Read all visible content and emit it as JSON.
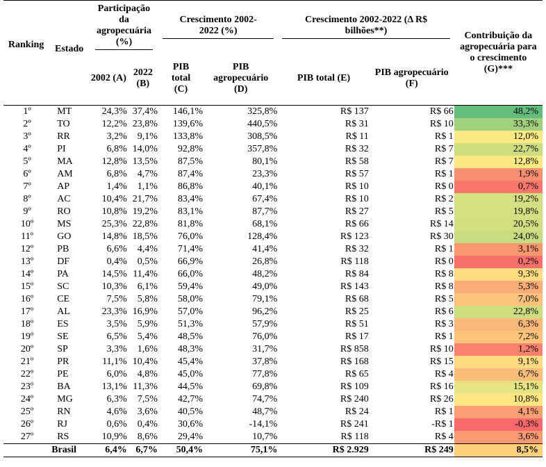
{
  "headers": {
    "ranking": "Ranking",
    "estado": "Estado",
    "participacao": "Participação da agropecuária (%)",
    "crescimento_pct": "Crescimento 2002-2022 (%)",
    "crescimento_abs": "Crescimento 2002-2022 (Δ R$ bilhões**)",
    "contribuicao": "Contribuição da agropecuária para o crescimento (G)***",
    "col_a": "2002 (A)",
    "col_b": "2022 (B)",
    "col_c": "PIB total (C)",
    "col_d": "PIB agropecuário (D)",
    "col_e": "PIB total (E)",
    "col_f": "PIB agropecuário (F)"
  },
  "rows": [
    {
      "rank": "1º",
      "estado": "MT",
      "a": "24,3%",
      "b": "37,4%",
      "c": "146,1%",
      "d": "325,8%",
      "e": "R$ 137",
      "f": "R$ 66",
      "g": "48,2%",
      "color": "#63be7b"
    },
    {
      "rank": "2º",
      "estado": "TO",
      "a": "12,2%",
      "b": "23,8%",
      "c": "139,6%",
      "d": "440,5%",
      "e": "R$ 31",
      "f": "R$ 10",
      "g": "33,3%",
      "color": "#a2d07f"
    },
    {
      "rank": "3º",
      "estado": "RR",
      "a": "3,2%",
      "b": "9,1%",
      "c": "133,8%",
      "d": "308,5%",
      "e": "R$ 11",
      "f": "R$ 1",
      "g": "12,0%",
      "color": "#fbe983"
    },
    {
      "rank": "4º",
      "estado": "PI",
      "a": "6,8%",
      "b": "14,0%",
      "c": "92,8%",
      "d": "357,8%",
      "e": "R$ 32",
      "f": "R$ 7",
      "g": "22,7%",
      "color": "#cfdd81"
    },
    {
      "rank": "5º",
      "estado": "MA",
      "a": "12,8%",
      "b": "13,5%",
      "c": "87,5%",
      "d": "80,1%",
      "e": "R$ 58",
      "f": "R$ 7",
      "g": "12,8%",
      "color": "#f8e983"
    },
    {
      "rank": "6º",
      "estado": "AM",
      "a": "6,8%",
      "b": "4,7%",
      "c": "87,4%",
      "d": "23,3%",
      "e": "R$ 57",
      "f": "R$ 1",
      "g": "1,9%",
      "color": "#f98f72"
    },
    {
      "rank": "7º",
      "estado": "AP",
      "a": "1,4%",
      "b": "1,1%",
      "c": "86,8%",
      "d": "40,1%",
      "e": "R$ 10",
      "f": "R$ 0",
      "g": "0,7%",
      "color": "#f8776d"
    },
    {
      "rank": "8º",
      "estado": "AC",
      "a": "10,4%",
      "b": "21,7%",
      "c": "83,4%",
      "d": "67,4%",
      "e": "R$ 10",
      "f": "R$ 2",
      "g": "19,2%",
      "color": "#d6df81"
    },
    {
      "rank": "9º",
      "estado": "RO",
      "a": "10,8%",
      "b": "19,2%",
      "c": "83,1%",
      "d": "87,7%",
      "e": "R$ 27",
      "f": "R$ 5",
      "g": "19,8%",
      "color": "#d6df81"
    },
    {
      "rank": "10º",
      "estado": "MS",
      "a": "25,3%",
      "b": "22,8%",
      "c": "81,8%",
      "d": "68,1%",
      "e": "R$ 66",
      "f": "R$ 14",
      "g": "20,5%",
      "color": "#d3de81"
    },
    {
      "rank": "11º",
      "estado": "GO",
      "a": "14,8%",
      "b": "18,5%",
      "c": "76,0%",
      "d": "128,4%",
      "e": "R$ 123",
      "f": "R$ 30",
      "g": "24,0%",
      "color": "#c9db80"
    },
    {
      "rank": "12º",
      "estado": "PB",
      "a": "6,6%",
      "b": "4,4%",
      "c": "71,4%",
      "d": "41,4%",
      "e": "R$ 32",
      "f": "R$ 1",
      "g": "3,1%",
      "color": "#f9976f"
    },
    {
      "rank": "13º",
      "estado": "DF",
      "a": "0,4%",
      "b": "0,5%",
      "c": "66,9%",
      "d": "26,8%",
      "e": "R$ 118",
      "f": "R$ 0",
      "g": "0,2%",
      "color": "#f8706c"
    },
    {
      "rank": "14º",
      "estado": "PA",
      "a": "14,5%",
      "b": "11,4%",
      "c": "66,0%",
      "d": "48,2%",
      "e": "R$ 84",
      "f": "R$ 8",
      "g": "9,3%",
      "color": "#fedc81"
    },
    {
      "rank": "15º",
      "estado": "SC",
      "a": "10,3%",
      "b": "6,1%",
      "c": "59,4%",
      "d": "49,0%",
      "e": "R$ 143",
      "f": "R$ 8",
      "g": "5,3%",
      "color": "#fbad77"
    },
    {
      "rank": "16º",
      "estado": "CE",
      "a": "7,5%",
      "b": "5,8%",
      "c": "58,0%",
      "d": "79,1%",
      "e": "R$ 68",
      "f": "R$ 5",
      "g": "7,0%",
      "color": "#fcc27b"
    },
    {
      "rank": "17º",
      "estado": "AL",
      "a": "23,3%",
      "b": "16,9%",
      "c": "57,0%",
      "d": "96,2%",
      "e": "R$ 25",
      "f": "R$ 6",
      "g": "22,8%",
      "color": "#cfdd81"
    },
    {
      "rank": "18º",
      "estado": "ES",
      "a": "3,5%",
      "b": "5,9%",
      "c": "51,3%",
      "d": "57,9%",
      "e": "R$ 51",
      "f": "R$ 3",
      "g": "6,3%",
      "color": "#fbb979"
    },
    {
      "rank": "19º",
      "estado": "SE",
      "a": "6,5%",
      "b": "5,4%",
      "c": "48,5%",
      "d": "76,0%",
      "e": "R$ 17",
      "f": "R$ 1",
      "g": "7,2%",
      "color": "#fcc37b"
    },
    {
      "rank": "20º",
      "estado": "SP",
      "a": "3,3%",
      "b": "1,6%",
      "c": "48,3%",
      "d": "31,7%",
      "e": "R$ 858",
      "f": "R$ 10",
      "g": "1,2%",
      "color": "#f8816f"
    },
    {
      "rank": "21º",
      "estado": "PR",
      "a": "11,1%",
      "b": "10,4%",
      "c": "45,4%",
      "d": "37,8%",
      "e": "R$ 168",
      "f": "R$ 15",
      "g": "9,1%",
      "color": "#fedb81"
    },
    {
      "rank": "22º",
      "estado": "PE",
      "a": "6,0%",
      "b": "4,8%",
      "c": "45,0%",
      "d": "77,8%",
      "e": "R$ 65",
      "f": "R$ 4",
      "g": "6,7%",
      "color": "#fbbe7a"
    },
    {
      "rank": "23º",
      "estado": "BA",
      "a": "13,1%",
      "b": "11,3%",
      "c": "44,5%",
      "d": "69,8%",
      "e": "R$ 109",
      "f": "R$ 16",
      "g": "15,1%",
      "color": "#e6e482"
    },
    {
      "rank": "24º",
      "estado": "MG",
      "a": "6,3%",
      "b": "7,5%",
      "c": "42,7%",
      "d": "74,7%",
      "e": "R$ 240",
      "f": "R$ 26",
      "g": "10,8%",
      "color": "#fee683"
    },
    {
      "rank": "25º",
      "estado": "RN",
      "a": "4,6%",
      "b": "3,6%",
      "c": "40,5%",
      "d": "48,7%",
      "e": "R$ 24",
      "f": "R$ 1",
      "g": "4,1%",
      "color": "#fa9f73"
    },
    {
      "rank": "26º",
      "estado": "RJ",
      "a": "0,6%",
      "b": "0,4%",
      "c": "30,6%",
      "d": "-14,1%",
      "e": "R$ 241",
      "f": "-R$ 1",
      "g": "-0,3%",
      "color": "#f8696b"
    },
    {
      "rank": "27º",
      "estado": "RS",
      "a": "10,9%",
      "b": "8,6%",
      "c": "29,4%",
      "d": "10,7%",
      "e": "R$ 118",
      "f": "R$ 4",
      "g": "3,6%",
      "color": "#f99b72"
    }
  ],
  "total": {
    "estado": "Brasil",
    "a": "6,4%",
    "b": "6,7%",
    "c": "50,4%",
    "d": "75,1%",
    "e": "R$ 2.929",
    "f": "R$ 249",
    "g": "8,5%",
    "color": "#fdd07e"
  }
}
